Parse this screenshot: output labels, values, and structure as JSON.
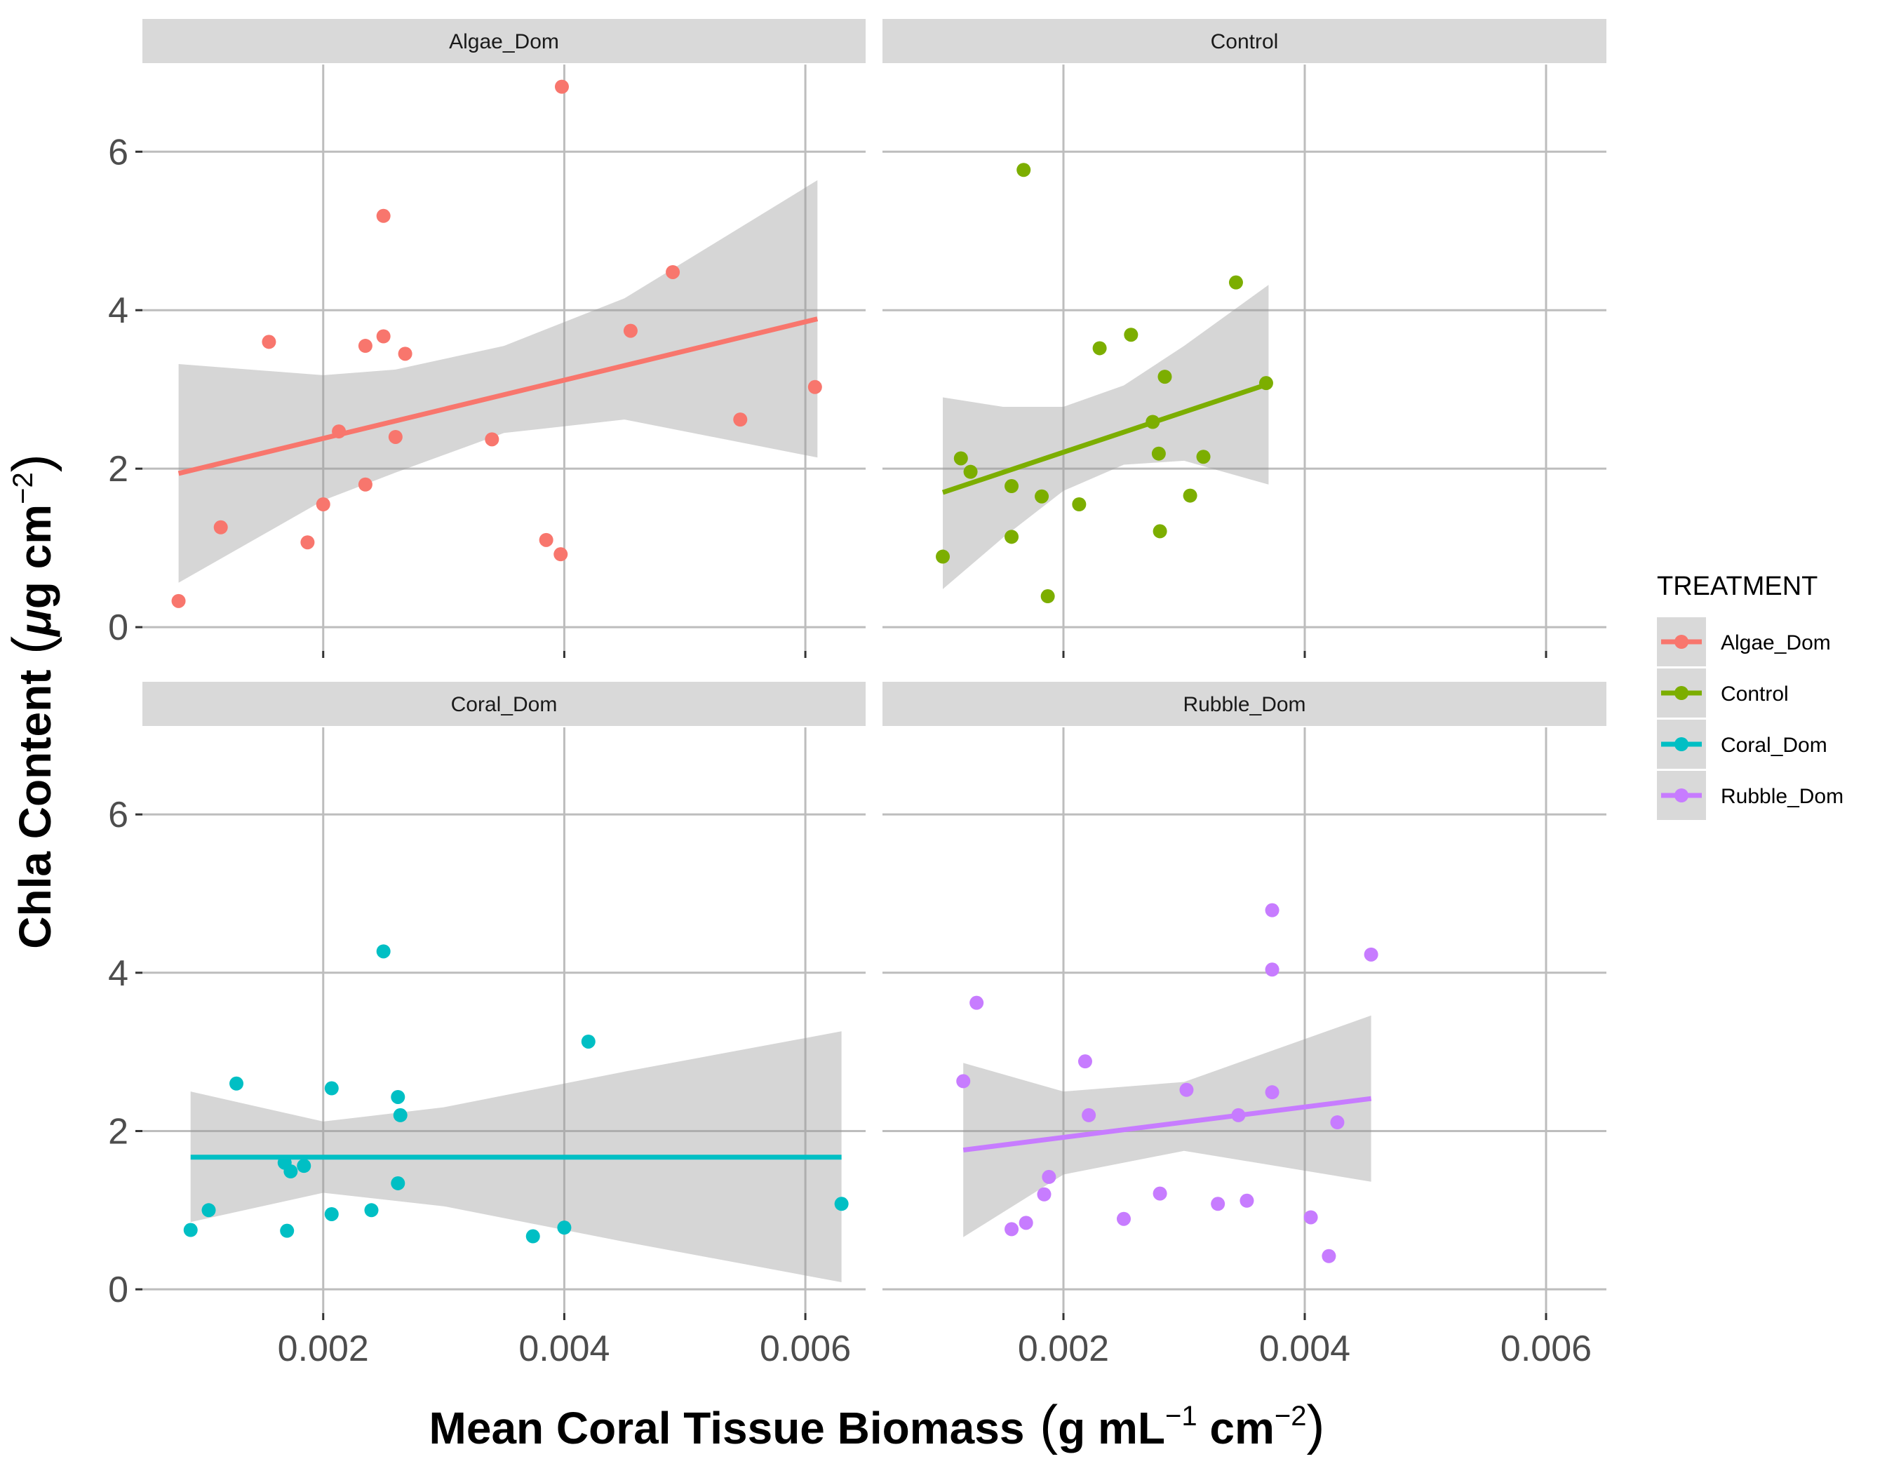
{
  "chart_data": {
    "type": "scatter",
    "xlabel": "Mean Coral Tissue Biomass",
    "xlabel_units": {
      "base": "g mL",
      "sup1": "−1",
      "mid": " cm",
      "sup2": "−2"
    },
    "ylabel": "Chla Content",
    "ylabel_units": {
      "mu": "μ",
      "base": "g cm",
      "sup": "−2"
    },
    "xlim": [
      0.0005,
      0.0065
    ],
    "ylim": [
      -0.3,
      7.1
    ],
    "x_ticks": [
      0.002,
      0.004,
      0.006
    ],
    "x_tick_labels": [
      "0.002",
      "0.004",
      "0.006"
    ],
    "y_ticks": [
      0,
      2,
      4,
      6
    ],
    "y_tick_labels": [
      "0",
      "2",
      "4",
      "6"
    ],
    "grid": true,
    "facet_layout": "2x2",
    "legend": {
      "title": "TREATMENT",
      "placement": "right",
      "entries": [
        "Algae_Dom",
        "Control",
        "Coral_Dom",
        "Rubble_Dom"
      ]
    },
    "series": [
      {
        "name": "Algae_Dom",
        "color": "#F8766D",
        "fit": {
          "x": [
            0.0008,
            0.0061
          ],
          "y": [
            1.94,
            3.89
          ]
        },
        "ci_upper": [
          [
            0.0008,
            3.32
          ],
          [
            0.002,
            3.18
          ],
          [
            0.0026,
            3.25
          ],
          [
            0.0035,
            3.55
          ],
          [
            0.0045,
            4.15
          ],
          [
            0.0061,
            5.64
          ]
        ],
        "ci_lower": [
          [
            0.0008,
            0.56
          ],
          [
            0.002,
            1.6
          ],
          [
            0.0026,
            1.95
          ],
          [
            0.0035,
            2.45
          ],
          [
            0.0045,
            2.62
          ],
          [
            0.0061,
            2.14
          ]
        ],
        "points": [
          [
            0.0008,
            0.33
          ],
          [
            0.00115,
            1.26
          ],
          [
            0.00155,
            3.6
          ],
          [
            0.00187,
            1.07
          ],
          [
            0.002,
            1.55
          ],
          [
            0.00213,
            2.47
          ],
          [
            0.00235,
            3.55
          ],
          [
            0.00235,
            1.8
          ],
          [
            0.0025,
            5.19
          ],
          [
            0.0025,
            3.67
          ],
          [
            0.0026,
            2.4
          ],
          [
            0.00268,
            3.45
          ],
          [
            0.0034,
            2.37
          ],
          [
            0.00385,
            1.1
          ],
          [
            0.00397,
            0.92
          ],
          [
            0.00398,
            6.82
          ],
          [
            0.00455,
            3.74
          ],
          [
            0.0049,
            4.48
          ],
          [
            0.00546,
            2.62
          ],
          [
            0.00608,
            3.03
          ]
        ]
      },
      {
        "name": "Control",
        "color": "#7CAE00",
        "fit": {
          "x": [
            0.001,
            0.0037
          ],
          "y": [
            1.7,
            3.07
          ]
        },
        "ci_upper": [
          [
            0.001,
            2.9
          ],
          [
            0.0015,
            2.78
          ],
          [
            0.002,
            2.78
          ],
          [
            0.0025,
            3.05
          ],
          [
            0.003,
            3.55
          ],
          [
            0.0037,
            4.32
          ]
        ],
        "ci_lower": [
          [
            0.001,
            0.48
          ],
          [
            0.0015,
            1.13
          ],
          [
            0.002,
            1.72
          ],
          [
            0.0025,
            2.05
          ],
          [
            0.003,
            2.1
          ],
          [
            0.0037,
            1.8
          ]
        ],
        "points": [
          [
            0.001,
            0.89
          ],
          [
            0.00115,
            2.13
          ],
          [
            0.00123,
            1.96
          ],
          [
            0.00157,
            1.78
          ],
          [
            0.00157,
            1.14
          ],
          [
            0.00167,
            5.77
          ],
          [
            0.00182,
            1.65
          ],
          [
            0.00187,
            0.39
          ],
          [
            0.00213,
            1.55
          ],
          [
            0.0023,
            3.52
          ],
          [
            0.00256,
            3.69
          ],
          [
            0.00274,
            2.59
          ],
          [
            0.00279,
            2.19
          ],
          [
            0.0028,
            1.21
          ],
          [
            0.00284,
            3.16
          ],
          [
            0.00305,
            1.66
          ],
          [
            0.00316,
            2.15
          ],
          [
            0.00343,
            4.35
          ],
          [
            0.00368,
            3.08
          ]
        ]
      },
      {
        "name": "Coral_Dom",
        "color": "#00BFC4",
        "fit": {
          "x": [
            0.0009,
            0.0063
          ],
          "y": [
            1.67,
            1.67
          ]
        },
        "ci_upper": [
          [
            0.0009,
            2.5
          ],
          [
            0.002,
            2.12
          ],
          [
            0.003,
            2.3
          ],
          [
            0.0045,
            2.75
          ],
          [
            0.0063,
            3.26
          ]
        ],
        "ci_lower": [
          [
            0.0009,
            0.85
          ],
          [
            0.002,
            1.22
          ],
          [
            0.003,
            1.05
          ],
          [
            0.0045,
            0.6
          ],
          [
            0.0063,
            0.09
          ]
        ],
        "points": [
          [
            0.0009,
            0.75
          ],
          [
            0.00105,
            1.0
          ],
          [
            0.00128,
            2.6
          ],
          [
            0.00168,
            1.6
          ],
          [
            0.0017,
            0.74
          ],
          [
            0.00173,
            1.49
          ],
          [
            0.00184,
            1.56
          ],
          [
            0.00207,
            0.95
          ],
          [
            0.00207,
            2.54
          ],
          [
            0.0024,
            1.0
          ],
          [
            0.0025,
            4.27
          ],
          [
            0.00262,
            2.43
          ],
          [
            0.00262,
            1.34
          ],
          [
            0.00264,
            2.2
          ],
          [
            0.00374,
            0.67
          ],
          [
            0.004,
            0.78
          ],
          [
            0.0042,
            3.13
          ],
          [
            0.0063,
            1.08
          ]
        ]
      },
      {
        "name": "Rubble_Dom",
        "color": "#C77CFF",
        "fit": {
          "x": [
            0.00117,
            0.00455
          ],
          "y": [
            1.76,
            2.41
          ]
        },
        "ci_upper": [
          [
            0.00117,
            2.86
          ],
          [
            0.002,
            2.5
          ],
          [
            0.003,
            2.62
          ],
          [
            0.00455,
            3.46
          ]
        ],
        "ci_lower": [
          [
            0.00117,
            0.66
          ],
          [
            0.002,
            1.45
          ],
          [
            0.003,
            1.75
          ],
          [
            0.00455,
            1.36
          ]
        ],
        "points": [
          [
            0.00117,
            2.63
          ],
          [
            0.00128,
            3.62
          ],
          [
            0.00157,
            0.76
          ],
          [
            0.00169,
            0.84
          ],
          [
            0.00184,
            1.2
          ],
          [
            0.00188,
            1.42
          ],
          [
            0.00218,
            2.88
          ],
          [
            0.00221,
            2.2
          ],
          [
            0.0025,
            0.89
          ],
          [
            0.0028,
            1.21
          ],
          [
            0.00302,
            2.52
          ],
          [
            0.00328,
            1.08
          ],
          [
            0.00345,
            2.2
          ],
          [
            0.00352,
            1.12
          ],
          [
            0.00373,
            2.49
          ],
          [
            0.00373,
            4.79
          ],
          [
            0.00373,
            4.04
          ],
          [
            0.00405,
            0.91
          ],
          [
            0.0042,
            0.42
          ],
          [
            0.00427,
            2.11
          ],
          [
            0.00455,
            4.23
          ]
        ]
      }
    ]
  }
}
